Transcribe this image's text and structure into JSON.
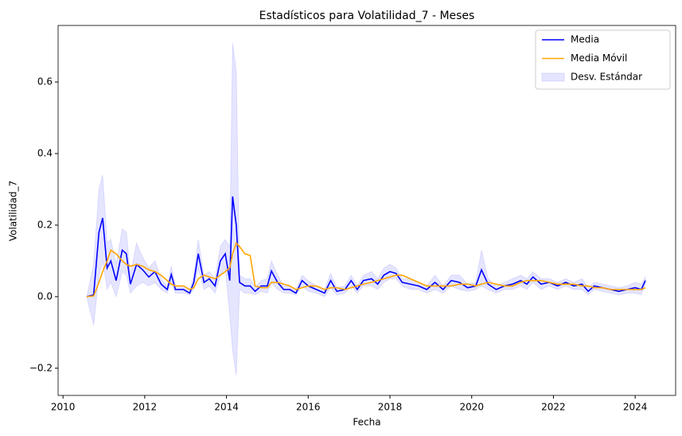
{
  "chart_data": {
    "type": "line",
    "title": "Estadísticos para Volatilidad_7 - Meses",
    "x_label": "Fecha",
    "y_label": "Volatilidad_7",
    "x": [
      2010.58,
      2010.75,
      2010.88,
      2010.97,
      2011.08,
      2011.17,
      2011.3,
      2011.45,
      2011.55,
      2011.65,
      2011.8,
      2011.95,
      2012.1,
      2012.25,
      2012.4,
      2012.55,
      2012.65,
      2012.75,
      2012.95,
      2013.1,
      2013.2,
      2013.31,
      2013.45,
      2013.58,
      2013.72,
      2013.85,
      2013.97,
      2014.08,
      2014.15,
      2014.24,
      2014.32,
      2014.45,
      2014.58,
      2014.7,
      2014.85,
      2015.0,
      2015.1,
      2015.25,
      2015.4,
      2015.55,
      2015.7,
      2015.85,
      2016.0,
      2016.2,
      2016.4,
      2016.55,
      2016.7,
      2016.9,
      2017.05,
      2017.2,
      2017.35,
      2017.55,
      2017.7,
      2017.85,
      2018.0,
      2018.15,
      2018.3,
      2018.5,
      2018.7,
      2018.9,
      2019.1,
      2019.3,
      2019.5,
      2019.7,
      2019.9,
      2020.1,
      2020.24,
      2020.4,
      2020.6,
      2020.8,
      2021.0,
      2021.2,
      2021.35,
      2021.5,
      2021.7,
      2021.9,
      2022.1,
      2022.3,
      2022.5,
      2022.7,
      2022.85,
      2023.0,
      2023.2,
      2023.4,
      2023.6,
      2023.8,
      2024.0,
      2024.15,
      2024.25
    ],
    "series": [
      {
        "name": "Media",
        "color": "#0000ff",
        "values": [
          0,
          0.005,
          0.18,
          0.22,
          0.08,
          0.1,
          0.045,
          0.13,
          0.12,
          0.035,
          0.09,
          0.075,
          0.055,
          0.07,
          0.035,
          0.02,
          0.062,
          0.02,
          0.02,
          0.01,
          0.04,
          0.12,
          0.04,
          0.05,
          0.03,
          0.1,
          0.12,
          0.045,
          0.28,
          0.2,
          0.04,
          0.03,
          0.03,
          0.015,
          0.03,
          0.03,
          0.072,
          0.04,
          0.02,
          0.02,
          0.01,
          0.045,
          0.03,
          0.02,
          0.01,
          0.045,
          0.015,
          0.02,
          0.045,
          0.02,
          0.045,
          0.05,
          0.035,
          0.06,
          0.07,
          0.065,
          0.04,
          0.035,
          0.03,
          0.02,
          0.04,
          0.02,
          0.045,
          0.04,
          0.025,
          0.03,
          0.075,
          0.035,
          0.02,
          0.03,
          0.035,
          0.045,
          0.035,
          0.055,
          0.035,
          0.04,
          0.03,
          0.04,
          0.03,
          0.035,
          0.015,
          0.03,
          0.025,
          0.02,
          0.015,
          0.02,
          0.025,
          0.02,
          0.045
        ]
      },
      {
        "name": "Media Móvil",
        "color": "#ffa500",
        "values": [
          0,
          0.002,
          0.04,
          0.07,
          0.1,
          0.13,
          0.12,
          0.1,
          0.09,
          0.085,
          0.09,
          0.085,
          0.075,
          0.07,
          0.06,
          0.045,
          0.035,
          0.03,
          0.03,
          0.02,
          0.025,
          0.05,
          0.06,
          0.055,
          0.05,
          0.06,
          0.07,
          0.08,
          0.12,
          0.15,
          0.14,
          0.12,
          0.115,
          0.03,
          0.025,
          0.025,
          0.04,
          0.04,
          0.035,
          0.03,
          0.02,
          0.025,
          0.03,
          0.03,
          0.02,
          0.025,
          0.025,
          0.02,
          0.025,
          0.03,
          0.035,
          0.04,
          0.045,
          0.05,
          0.055,
          0.06,
          0.06,
          0.05,
          0.04,
          0.03,
          0.03,
          0.03,
          0.03,
          0.035,
          0.035,
          0.03,
          0.035,
          0.04,
          0.035,
          0.03,
          0.03,
          0.04,
          0.045,
          0.045,
          0.045,
          0.04,
          0.035,
          0.035,
          0.035,
          0.03,
          0.03,
          0.025,
          0.025,
          0.02,
          0.02,
          0.02,
          0.02,
          0.02,
          0.025
        ]
      }
    ],
    "band": {
      "name": "Desv. Estándar",
      "color": "#0000ff",
      "lower": [
        0,
        -0.08,
        0.06,
        0.1,
        0.02,
        0.04,
        0.0,
        0.07,
        0.06,
        0.01,
        0.03,
        0.04,
        0.03,
        0.04,
        0.02,
        0.01,
        0.04,
        0.01,
        0.01,
        0.005,
        0.02,
        0.08,
        0.02,
        0.03,
        0.01,
        0.06,
        0.08,
        -0.05,
        -0.15,
        -0.22,
        0.02,
        0.01,
        0.01,
        0.005,
        0.015,
        0.01,
        0.04,
        0.02,
        0.01,
        0.01,
        0.005,
        0.03,
        0.015,
        0.01,
        0.0,
        0.025,
        0.005,
        0.01,
        0.03,
        0.01,
        0.03,
        0.03,
        0.02,
        0.04,
        0.05,
        0.05,
        0.03,
        0.02,
        0.02,
        0.01,
        0.02,
        0.01,
        0.03,
        0.02,
        0.015,
        0.02,
        0.03,
        0.02,
        0.01,
        0.02,
        0.02,
        0.03,
        0.02,
        0.04,
        0.02,
        0.03,
        0.02,
        0.03,
        0.02,
        0.02,
        0.005,
        0.02,
        0.015,
        0.01,
        0.005,
        0.01,
        0.01,
        0.005,
        0.035
      ],
      "upper": [
        0,
        0.09,
        0.3,
        0.34,
        0.15,
        0.16,
        0.09,
        0.19,
        0.18,
        0.06,
        0.15,
        0.11,
        0.08,
        0.1,
        0.05,
        0.03,
        0.085,
        0.03,
        0.03,
        0.02,
        0.06,
        0.16,
        0.06,
        0.07,
        0.05,
        0.14,
        0.16,
        0.14,
        0.71,
        0.63,
        0.06,
        0.05,
        0.05,
        0.025,
        0.045,
        0.05,
        0.1,
        0.06,
        0.03,
        0.03,
        0.02,
        0.06,
        0.045,
        0.03,
        0.02,
        0.065,
        0.025,
        0.03,
        0.06,
        0.03,
        0.06,
        0.07,
        0.05,
        0.08,
        0.09,
        0.08,
        0.05,
        0.05,
        0.04,
        0.03,
        0.06,
        0.03,
        0.06,
        0.06,
        0.035,
        0.04,
        0.13,
        0.05,
        0.03,
        0.04,
        0.05,
        0.06,
        0.05,
        0.07,
        0.05,
        0.05,
        0.04,
        0.05,
        0.04,
        0.05,
        0.025,
        0.04,
        0.035,
        0.03,
        0.025,
        0.03,
        0.04,
        0.035,
        0.055
      ]
    },
    "xlim": [
      2009.88,
      2024.99
    ],
    "xticks": [
      2010,
      2012,
      2014,
      2016,
      2018,
      2020,
      2022,
      2024
    ],
    "ylim": [
      -0.276,
      0.758
    ],
    "yticks": [
      {
        "value": -0.2,
        "label": "−0.2"
      },
      {
        "value": 0,
        "label": "0.0"
      },
      0.2,
      0.4,
      0.6
    ],
    "legend": "upper right"
  }
}
